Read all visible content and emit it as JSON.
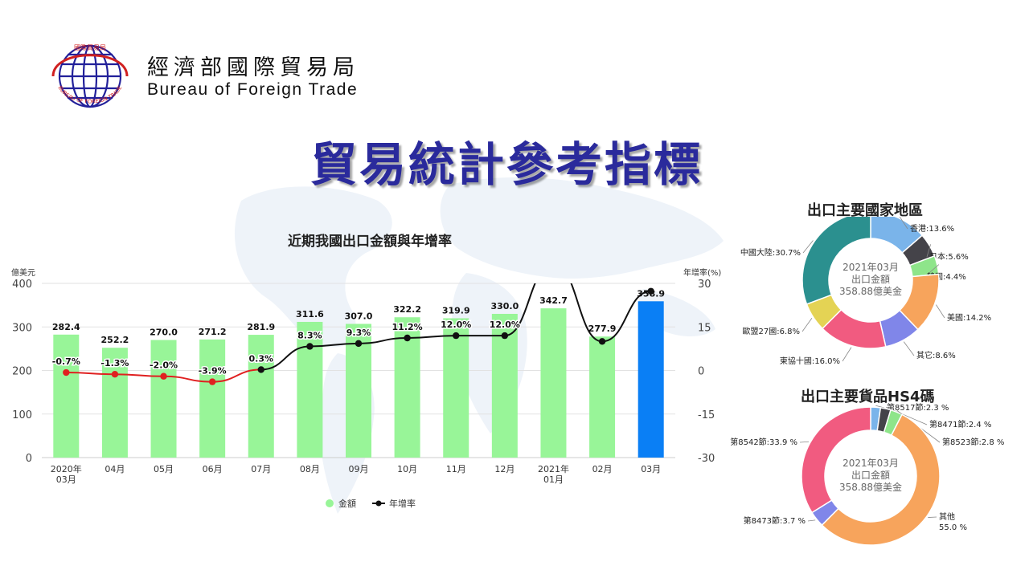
{
  "header": {
    "org_name_cn": "經濟部國際貿易局",
    "org_name_en": "Bureau of Foreign Trade",
    "logo_text_top": "國際貿易局",
    "logo_text_bottom": "BUREAU OF FOREIGN TRADE"
  },
  "page_title": "貿易統計參考指標",
  "colors": {
    "title": "#2a2a9c",
    "bar": "#98f598",
    "bar_highlight": "#0a7ff5",
    "line_negative": "#e02020",
    "line_positive": "#111111"
  },
  "chart_data": [
    {
      "type": "bar",
      "title": "近期我國出口金額與年增率",
      "ylabel": "億美元",
      "y2label": "年增率(%)",
      "ylim": [
        0,
        400
      ],
      "y2lim": [
        -30,
        30
      ],
      "yticks": [
        "400",
        "300",
        "200",
        "100",
        "0"
      ],
      "y2ticks": [
        "30",
        "15",
        "0",
        "-15",
        "-30"
      ],
      "categories": [
        [
          "2020年",
          "03月"
        ],
        [
          "04月"
        ],
        [
          "05月"
        ],
        [
          "06月"
        ],
        [
          "07月"
        ],
        [
          "08月"
        ],
        [
          "09月"
        ],
        [
          "10月"
        ],
        [
          "11月"
        ],
        [
          "12月"
        ],
        [
          "2021年",
          "01月"
        ],
        [
          "02月"
        ],
        [
          "03月"
        ]
      ],
      "series": [
        {
          "name": "金額",
          "type": "bar",
          "values": [
            282.4,
            252.2,
            270.0,
            271.2,
            281.9,
            311.6,
            307.0,
            322.2,
            319.9,
            330.0,
            342.7,
            277.9,
            358.9
          ],
          "labels": [
            "282.4",
            "252.2",
            "270.0",
            "271.2",
            "281.9",
            "311.6",
            "307.0",
            "322.2",
            "319.9",
            "330.0",
            "342.7",
            "277.9",
            "358.9"
          ]
        },
        {
          "name": "年增率",
          "type": "line",
          "axis": "right",
          "values": [
            -0.7,
            -1.3,
            -2.0,
            -3.9,
            0.3,
            8.3,
            9.3,
            11.2,
            12.0,
            12.0,
            36.8,
            10.0,
            27.3
          ],
          "labels": [
            "-0.7%",
            "-1.3%",
            "-2.0%",
            "-3.9%",
            "0.3%",
            "8.3%",
            "9.3%",
            "11.2%",
            "12.0%",
            "12.0%",
            "",
            "",
            ""
          ]
        }
      ],
      "legend": "bottom",
      "grid": true
    },
    {
      "type": "pie",
      "title": "出口主要國家地區",
      "center_text": [
        "2021年03月",
        "出口金額",
        "358.88億美金"
      ],
      "slices": [
        {
          "label": "香港:13.6%",
          "value": 13.6,
          "color": "#7ab4ea"
        },
        {
          "label": "日本:5.6%",
          "value": 5.6,
          "color": "#444349"
        },
        {
          "label": "韓國:4.4%",
          "value": 4.4,
          "color": "#8ee58a"
        },
        {
          "label": "美國:14.2%",
          "value": 14.2,
          "color": "#f7a45c"
        },
        {
          "label": "其它:8.6%",
          "value": 8.6,
          "color": "#8086e9"
        },
        {
          "label": "東協十國:16.0%",
          "value": 16.0,
          "color": "#f15b80"
        },
        {
          "label": "歐盟27國:6.8%",
          "value": 6.8,
          "color": "#e4d354"
        },
        {
          "label": "中國大陸:30.7%",
          "value": 30.7,
          "color": "#2b908f"
        }
      ]
    },
    {
      "type": "pie",
      "title": "出口主要貨品HS4碼",
      "center_text": [
        "2021年03月",
        "出口金額",
        "358.88億美金"
      ],
      "slices": [
        {
          "label": "第8517節:2.3 %",
          "value": 2.3,
          "color": "#7ab4ea"
        },
        {
          "label": "第8471節:2.4 %",
          "value": 2.4,
          "color": "#444349"
        },
        {
          "label": "第8523節:2.8 %",
          "value": 2.8,
          "color": "#8ee58a"
        },
        {
          "label": "其他 55.0 %",
          "value": 55.0,
          "color": "#f7a45c"
        },
        {
          "label": "第8473節:3.7 %",
          "value": 3.7,
          "color": "#8086e9"
        },
        {
          "label": "第8542節:33.9 %",
          "value": 33.9,
          "color": "#f15b80"
        }
      ]
    }
  ]
}
